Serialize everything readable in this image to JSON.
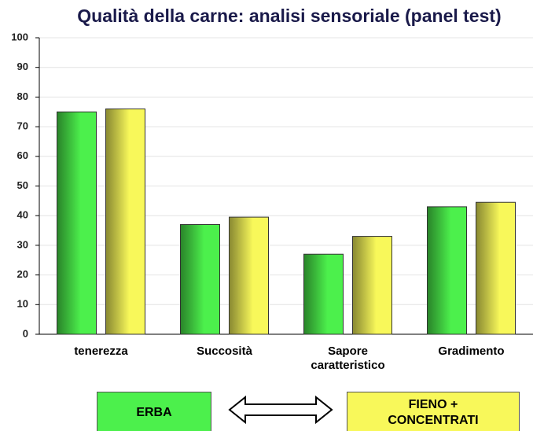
{
  "chart_data": {
    "type": "bar",
    "title": "Qualità della carne: analisi sensoriale (panel test)",
    "categories": [
      "tenerezza",
      "Succosità",
      "Sapore caratteristico",
      "Gradimento"
    ],
    "series": [
      {
        "name": "ERBA",
        "color": "#4cf04c",
        "values": [
          75,
          37,
          27,
          43
        ]
      },
      {
        "name": "FIENO + CONCENTRATI",
        "color": "#f8f85a",
        "values": [
          76,
          39.5,
          33,
          44.5
        ]
      }
    ],
    "ylim": [
      0,
      100
    ],
    "yticks": [
      0,
      10,
      20,
      30,
      40,
      50,
      60,
      70,
      80,
      90,
      100
    ],
    "grid": true
  }
}
